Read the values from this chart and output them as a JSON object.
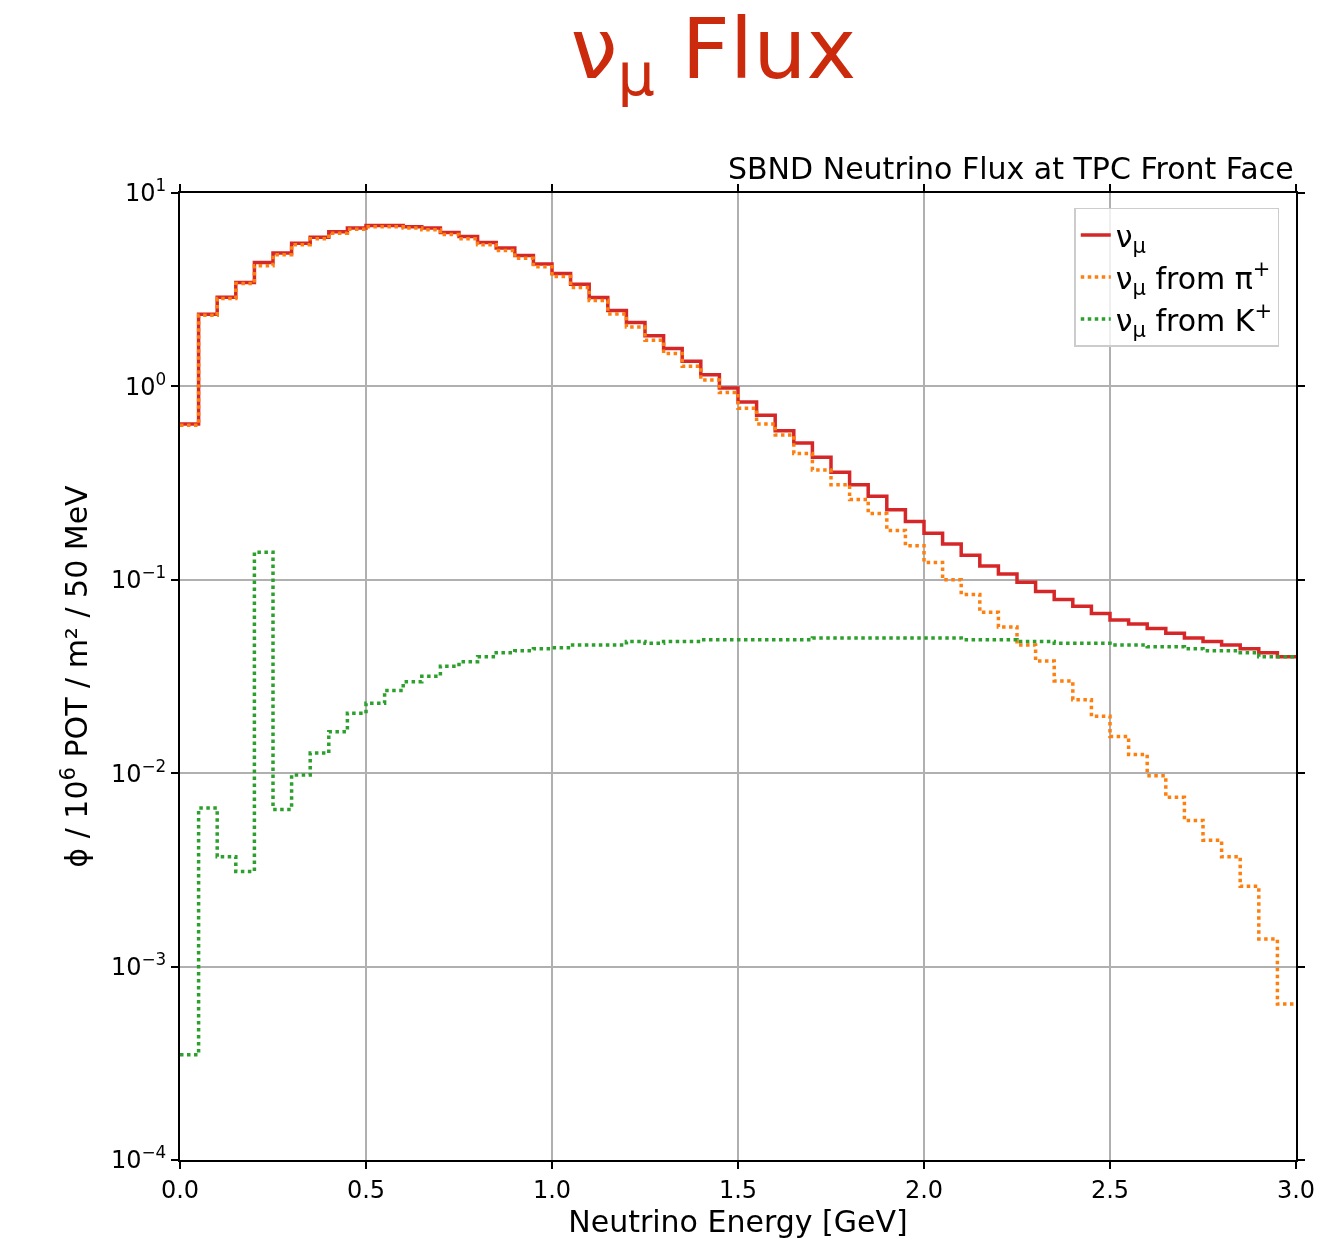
{
  "chart_data": {
    "type": "histogram",
    "title": "ν$_{μ}$ Flux",
    "subtitle": "SBND Neutrino Flux at TPC Front Face",
    "xlabel": "Neutrino Energy [GeV]",
    "ylabel": "ϕ / 10$^{6}$ POT / m² / 50 MeV",
    "bins": [
      0,
      0.05,
      0.1,
      0.15,
      0.2,
      0.25,
      0.3,
      0.35,
      0.4,
      0.45,
      0.5,
      0.55,
      0.6,
      0.65,
      0.7,
      0.75,
      0.8,
      0.85,
      0.9,
      0.95,
      1.0,
      1.05,
      1.1,
      1.15,
      1.2,
      1.25,
      1.3,
      1.35,
      1.4,
      1.45,
      1.5,
      1.55,
      1.6,
      1.65,
      1.7,
      1.75,
      1.8,
      1.85,
      1.9,
      1.95,
      2.0,
      2.05,
      2.1,
      2.15,
      2.2,
      2.25,
      2.3,
      2.35,
      2.4,
      2.45,
      2.5,
      2.55,
      2.6,
      2.65,
      2.7,
      2.75,
      2.8,
      2.85,
      2.9,
      2.95,
      3.0
    ],
    "series": [
      {
        "name": "ν$_{μ}$",
        "color": "#d62728",
        "line_style": "solid",
        "values": [
          0.64,
          2.36,
          2.89,
          3.45,
          4.37,
          4.9,
          5.5,
          5.9,
          6.3,
          6.6,
          6.8,
          6.8,
          6.7,
          6.6,
          6.25,
          5.95,
          5.55,
          5.2,
          4.75,
          4.3,
          3.84,
          3.37,
          2.88,
          2.47,
          2.14,
          1.83,
          1.57,
          1.35,
          1.15,
          0.98,
          0.83,
          0.71,
          0.59,
          0.51,
          0.43,
          0.36,
          0.31,
          0.27,
          0.23,
          0.2,
          0.174,
          0.153,
          0.134,
          0.118,
          0.107,
          0.097,
          0.087,
          0.079,
          0.073,
          0.067,
          0.062,
          0.059,
          0.056,
          0.053,
          0.05,
          0.048,
          0.046,
          0.044,
          0.042,
          0.04
        ]
      },
      {
        "name": "ν$_{μ}$ from π$^{+}$",
        "color": "#ff7f0e",
        "line_style": "dotted",
        "values": [
          0.63,
          2.33,
          2.85,
          3.4,
          4.2,
          4.8,
          5.4,
          5.8,
          6.2,
          6.5,
          6.7,
          6.7,
          6.6,
          6.45,
          6.1,
          5.8,
          5.4,
          5.05,
          4.6,
          4.15,
          3.7,
          3.25,
          2.78,
          2.37,
          2.03,
          1.73,
          1.48,
          1.27,
          1.08,
          0.93,
          0.77,
          0.64,
          0.56,
          0.45,
          0.37,
          0.31,
          0.26,
          0.22,
          0.18,
          0.15,
          0.123,
          0.1,
          0.084,
          0.068,
          0.057,
          0.046,
          0.038,
          0.03,
          0.024,
          0.0197,
          0.0155,
          0.0125,
          0.0097,
          0.0075,
          0.0057,
          0.0045,
          0.0037,
          0.0026,
          0.00139,
          0.00064
        ]
      },
      {
        "name": "ν$_{μ}$ from K$^{+}$",
        "color": "#2ca02c",
        "line_style": "dotted",
        "values": [
          0.00035,
          0.0066,
          0.0037,
          0.0031,
          0.139,
          0.0065,
          0.0098,
          0.0127,
          0.0164,
          0.0204,
          0.023,
          0.0268,
          0.0297,
          0.0317,
          0.0357,
          0.0377,
          0.04,
          0.042,
          0.043,
          0.044,
          0.0445,
          0.046,
          0.046,
          0.046,
          0.048,
          0.047,
          0.048,
          0.048,
          0.049,
          0.049,
          0.049,
          0.049,
          0.049,
          0.049,
          0.05,
          0.05,
          0.05,
          0.05,
          0.05,
          0.05,
          0.05,
          0.05,
          0.049,
          0.049,
          0.049,
          0.048,
          0.048,
          0.047,
          0.047,
          0.047,
          0.046,
          0.046,
          0.045,
          0.045,
          0.044,
          0.043,
          0.043,
          0.042,
          0.04,
          0.04
        ]
      }
    ],
    "xlim": [
      0,
      3.0
    ],
    "xticks": [
      {
        "value": 0,
        "label": "0.0"
      },
      {
        "value": 0.5,
        "label": "0.5"
      },
      {
        "value": 1.0,
        "label": "1.0"
      },
      {
        "value": 1.5,
        "label": "1.5"
      },
      {
        "value": 2.0,
        "label": "2.0"
      },
      {
        "value": 2.5,
        "label": "2.5"
      },
      {
        "value": 3.0,
        "label": "3.0"
      }
    ],
    "ylim": [
      0.0001,
      10
    ],
    "yticks": [
      {
        "value": 0.0001,
        "label": "10$^{−4}$"
      },
      {
        "value": 0.001,
        "label": "10$^{−3}$"
      },
      {
        "value": 0.01,
        "label": "10$^{−2}$"
      },
      {
        "value": 0.1,
        "label": "10$^{−1}$"
      },
      {
        "value": 1,
        "label": "10$^{0}$"
      },
      {
        "value": 10,
        "label": "10$^{1}$"
      }
    ],
    "log": "y",
    "grid": true,
    "legend": "top right"
  }
}
